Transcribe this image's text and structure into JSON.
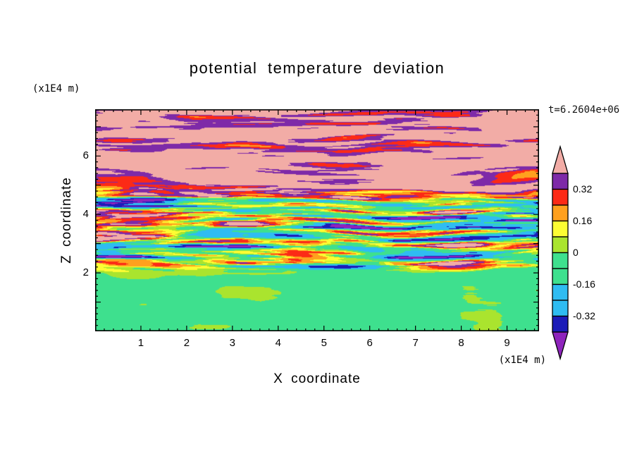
{
  "chart_data": {
    "type": "heatmap",
    "title": "potential temperature deviation",
    "xlabel": "X coordinate",
    "ylabel": "Z coordinate",
    "x_axis_unit": "(x1E4 m)",
    "y_axis_unit": "(x1E4 m)",
    "annotation_time": "t=6.2604e+06",
    "xlim": [
      0,
      9.7
    ],
    "ylim": [
      0,
      7.6
    ],
    "x_tick_labels": [
      "1",
      "2",
      "3",
      "4",
      "5",
      "6",
      "7",
      "8",
      "9"
    ],
    "y_tick_labels": [
      "2",
      "4",
      "6"
    ],
    "x_minor_step": 0.2,
    "y_minor_step": 0.2,
    "grid": false,
    "colorbar": {
      "position": "right",
      "tick_labels": [
        "0.32",
        "0.16",
        "0",
        "-0.16",
        "-0.32"
      ],
      "tick_values": [
        0.32,
        0.16,
        0,
        -0.16,
        -0.32
      ],
      "levels": [
        -0.4,
        -0.32,
        -0.24,
        -0.16,
        -0.08,
        0,
        0.08,
        0.16,
        0.24,
        0.32,
        0.4
      ],
      "band_colors": [
        "#1c1cb8",
        "#2fbcf2",
        "#2fbcf2",
        "#3ee08e",
        "#3ee08e",
        "#aae42e",
        "#fdfd33",
        "#ffa01e",
        "#fc2a16",
        "#7e2aa8"
      ],
      "under_arrow_color": "#8e24bc",
      "over_arrow_color": "#f2aca6"
    },
    "field_model": {
      "description": "Turbulent potential temperature deviation field: near-neutral green layer below z~2x1E4 m with blobby yellow-green patches, strongly streaky mixed layer of alternating warm/cold horizontal filaments between z~2 and z~4.9, and a warm stratified pink layer with purple/red streaks above z~4.9.",
      "layers": [
        {
          "z_range": [
            0.0,
            2.2
          ],
          "mean": -0.055,
          "amplitude": 0.11,
          "texture": "blobby"
        },
        {
          "z_range": [
            2.2,
            4.9
          ],
          "mean": 0.02,
          "amplitude": 0.55,
          "texture": "horizontal-streaks"
        },
        {
          "z_range": [
            4.9,
            7.6
          ],
          "mean": 0.44,
          "amplitude": 0.28,
          "texture": "horizontal-streaks"
        }
      ],
      "noise_seed": 1337
    }
  }
}
